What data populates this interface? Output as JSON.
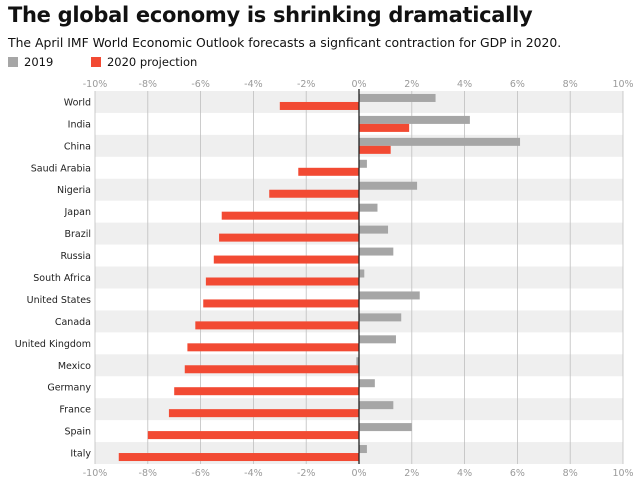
{
  "title": "The global economy is shrinking dramatically",
  "subtitle": "The April IMF World Economic Outlook forecasts a signficant contraction for GDP in 2020.",
  "colors": {
    "series_2019": "#a6a6a6",
    "series_2020": "#f24a33",
    "band": "#efefef",
    "zero_line": "#222222",
    "grid": "#bfbfbf"
  },
  "chart_data": {
    "type": "bar",
    "orientation": "horizontal",
    "title": "The global economy is shrinking dramatically",
    "subtitle": "The April IMF World Economic Outlook forecasts a signficant contraction for GDP in 2020.",
    "xlim": [
      -10,
      10
    ],
    "x_ticks": [
      -10,
      -8,
      -6,
      -4,
      -2,
      0,
      2,
      4,
      6,
      8,
      10
    ],
    "x_tick_labels": [
      "-10%",
      "-8%",
      "-6%",
      "-4%",
      "-2%",
      "0%",
      "2%",
      "4%",
      "6%",
      "8%",
      "10%"
    ],
    "legend_position": "top-left",
    "categories": [
      "World",
      "India",
      "China",
      "Saudi Arabia",
      "Nigeria",
      "Japan",
      "Brazil",
      "Russia",
      "South Africa",
      "United States",
      "Canada",
      "United Kingdom",
      "Mexico",
      "Germany",
      "France",
      "Spain",
      "Italy"
    ],
    "series": [
      {
        "name": "2019",
        "color": "#a6a6a6",
        "values": [
          2.9,
          4.2,
          6.1,
          0.3,
          2.2,
          0.7,
          1.1,
          1.3,
          0.2,
          2.3,
          1.6,
          1.4,
          -0.1,
          0.6,
          1.3,
          2.0,
          0.3
        ]
      },
      {
        "name": "2020 projection",
        "color": "#f24a33",
        "values": [
          -3.0,
          1.9,
          1.2,
          -2.3,
          -3.4,
          -5.2,
          -5.3,
          -5.5,
          -5.8,
          -5.9,
          -6.2,
          -6.5,
          -6.6,
          -7.0,
          -7.2,
          -8.0,
          -9.1
        ]
      }
    ]
  }
}
